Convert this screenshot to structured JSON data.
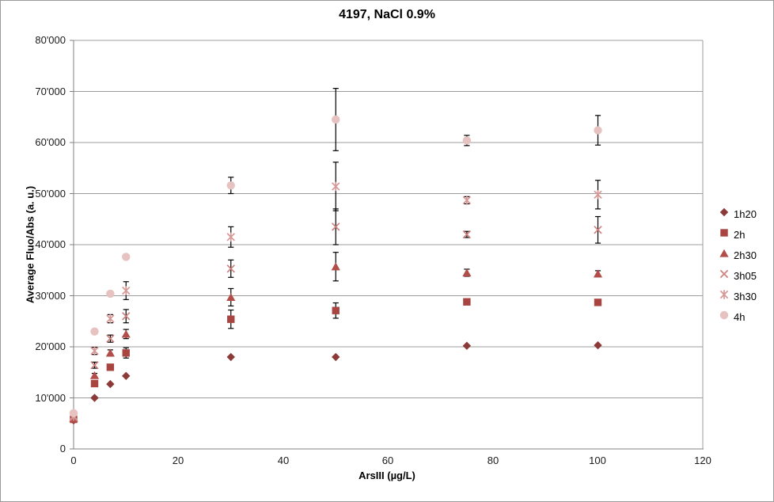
{
  "chart_data": {
    "type": "scatter",
    "title": "4197, NaCl 0.9%",
    "xlabel": "ArsIII (µg/L)",
    "ylabel": "Average Fluo/Abs (a. u.)",
    "xlim": [
      0,
      120
    ],
    "ylim": [
      0,
      80000
    ],
    "grid": true,
    "legend_position": "right",
    "x_tick_labels": [
      "0",
      "20",
      "40",
      "60",
      "80",
      "100",
      "120"
    ],
    "y_tick_labels": [
      "80'000",
      "70'000",
      "60'000",
      "50'000",
      "40'000",
      "30'000",
      "20'000",
      "10'000",
      "0"
    ],
    "x": [
      0,
      4,
      7,
      10,
      30,
      50,
      75,
      100
    ],
    "series": [
      {
        "name": "1h20",
        "marker": "diamond",
        "color": "#8c3a38",
        "values": [
          5600,
          10000,
          12700,
          14300,
          18000,
          18000,
          20200,
          20300
        ],
        "errors": [
          0,
          0,
          0,
          0,
          0,
          0,
          0,
          0
        ]
      },
      {
        "name": "2h",
        "marker": "square",
        "color": "#a94541",
        "values": [
          5800,
          12800,
          16000,
          18800,
          25400,
          27100,
          28800,
          28700
        ],
        "errors": [
          0,
          400,
          500,
          1000,
          1800,
          1500,
          500,
          400
        ]
      },
      {
        "name": "2h30",
        "marker": "triangle",
        "color": "#b24d49",
        "values": [
          6000,
          14400,
          18800,
          22500,
          29700,
          35700,
          34500,
          34300
        ],
        "errors": [
          0,
          400,
          600,
          900,
          1700,
          2800,
          700,
          600
        ]
      },
      {
        "name": "3h05",
        "marker": "x",
        "color": "#cd827f",
        "values": [
          6200,
          16400,
          21600,
          26000,
          35300,
          43500,
          42000,
          42900
        ],
        "errors": [
          0,
          600,
          700,
          1300,
          1700,
          3500,
          600,
          2600
        ]
      },
      {
        "name": "3h30",
        "marker": "asterisk",
        "color": "#d69795",
        "values": [
          6400,
          19200,
          25500,
          31000,
          41500,
          51400,
          48700,
          49800
        ],
        "errors": [
          0,
          700,
          800,
          1750,
          2000,
          4750,
          700,
          2800
        ]
      },
      {
        "name": "4h",
        "marker": "circle",
        "color": "#e6c2c1",
        "values": [
          7000,
          23000,
          30400,
          37600,
          51600,
          64500,
          60400,
          62400
        ],
        "errors": [
          0,
          0,
          0,
          0,
          1600,
          6100,
          1000,
          2900
        ]
      }
    ],
    "style": {
      "axis_color": "#808080",
      "grid_color": "#9c9c9c",
      "error_bar_color": "#000000"
    }
  }
}
